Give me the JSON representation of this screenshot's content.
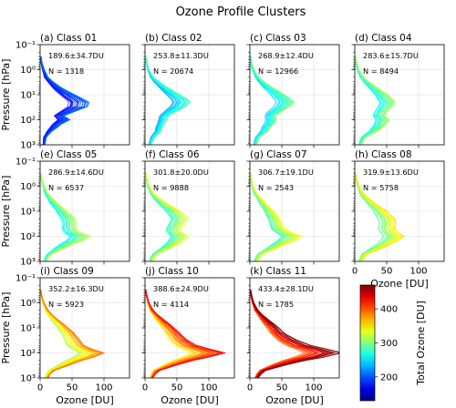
{
  "title": "Ozone Profile Clusters",
  "chart_data": {
    "type": "line",
    "title": "Ozone Profile Clusters",
    "xlabel": "Ozone [DU]",
    "ylabel": "Pressure [hPa]",
    "xlim": [
      0,
      140
    ],
    "ylim": [
      1000,
      0.1
    ],
    "yscale": "log",
    "xticks": [
      "0",
      "50",
      "100"
    ],
    "yticks": [
      "10⁻¹",
      "10⁰",
      "10¹",
      "10²",
      "10³"
    ],
    "grid": true,
    "colorbar": {
      "label": "Total Ozone [DU]",
      "ticks": [
        "200",
        "300",
        "400"
      ],
      "range": [
        130,
        470
      ]
    },
    "profile_pressure_hpa": [
      1000,
      700,
      500,
      300,
      200,
      150,
      100,
      70,
      50,
      30,
      20,
      15,
      10,
      7,
      5,
      3,
      2,
      1,
      0.5,
      0.3
    ],
    "panels": [
      {
        "label": "(a) Class 01",
        "stats": "189.6±34.7DU",
        "n": "N = 1318",
        "mean_total_du": 189.6,
        "mean_profile_du": [
          6,
          7,
          8,
          14,
          22,
          27,
          38,
          30,
          42,
          60,
          62,
          55,
          44,
          34,
          26,
          16,
          10,
          5,
          2,
          1
        ]
      },
      {
        "label": "(b) Class 02",
        "stats": "253.8±11.3DU",
        "n": "N = 20674",
        "mean_total_du": 253.8,
        "mean_profile_du": [
          8,
          10,
          12,
          20,
          22,
          25,
          28,
          30,
          38,
          52,
          58,
          54,
          45,
          36,
          28,
          18,
          11,
          5,
          2,
          1
        ]
      },
      {
        "label": "(c) Class 03",
        "stats": "268.9±12.4DU",
        "n": "N = 12966",
        "mean_total_du": 268.9,
        "mean_profile_du": [
          8,
          10,
          12,
          22,
          26,
          30,
          34,
          32,
          38,
          50,
          56,
          52,
          44,
          36,
          28,
          18,
          11,
          5,
          2,
          1
        ]
      },
      {
        "label": "(d) Class 04",
        "stats": "283.6±15.7DU",
        "n": "N = 8494",
        "mean_total_du": 283.6,
        "mean_profile_du": [
          8,
          11,
          14,
          28,
          36,
          40,
          44,
          38,
          40,
          48,
          52,
          48,
          42,
          35,
          28,
          18,
          11,
          5,
          2,
          1
        ]
      },
      {
        "label": "(e) Class 05",
        "stats": "286.9±14.6DU",
        "n": "N = 6537",
        "mean_total_du": 286.9,
        "mean_profile_du": [
          8,
          11,
          15,
          30,
          42,
          54,
          62,
          50,
          46,
          46,
          44,
          40,
          34,
          28,
          22,
          15,
          10,
          5,
          2,
          1
        ]
      },
      {
        "label": "(f) Class 06",
        "stats": "301.8±20.0DU",
        "n": "N = 9888",
        "mean_total_du": 301.8,
        "mean_profile_du": [
          9,
          12,
          16,
          32,
          42,
          48,
          54,
          46,
          44,
          50,
          54,
          50,
          44,
          36,
          28,
          18,
          11,
          5,
          2,
          1
        ]
      },
      {
        "label": "(g) Class 07",
        "stats": "306.7±19.1DU",
        "n": "N = 2543",
        "mean_total_du": 306.7,
        "mean_profile_du": [
          9,
          12,
          16,
          34,
          46,
          56,
          64,
          52,
          44,
          40,
          38,
          34,
          30,
          25,
          20,
          14,
          9,
          4,
          2,
          1
        ]
      },
      {
        "label": "(h) Class 08",
        "stats": "319.9±13.6DU",
        "n": "N = 5758",
        "mean_total_du": 319.9,
        "mean_profile_du": [
          9,
          12,
          16,
          34,
          46,
          54,
          62,
          54,
          50,
          52,
          50,
          46,
          40,
          33,
          26,
          17,
          11,
          5,
          2,
          1
        ]
      },
      {
        "label": "(i) Class 09",
        "stats": "352.2±16.3DU",
        "n": "N = 5923",
        "mean_total_du": 352.2,
        "mean_profile_du": [
          10,
          13,
          18,
          38,
          54,
          68,
          82,
          66,
          56,
          50,
          46,
          42,
          36,
          30,
          24,
          16,
          10,
          5,
          2,
          1
        ]
      },
      {
        "label": "(j) Class 10",
        "stats": "388.6±24.9DU",
        "n": "N = 4114",
        "mean_total_du": 388.6,
        "mean_profile_du": [
          10,
          13,
          18,
          40,
          60,
          78,
          100,
          80,
          64,
          52,
          46,
          42,
          36,
          30,
          24,
          16,
          10,
          5,
          2,
          1
        ]
      },
      {
        "label": "(k) Class 11",
        "stats": "433.4±28.1DU",
        "n": "N = 1785",
        "mean_total_du": 433.4,
        "mean_profile_du": [
          10,
          14,
          20,
          46,
          70,
          92,
          115,
          96,
          76,
          58,
          48,
          42,
          36,
          30,
          24,
          16,
          10,
          5,
          2,
          1
        ]
      }
    ]
  }
}
